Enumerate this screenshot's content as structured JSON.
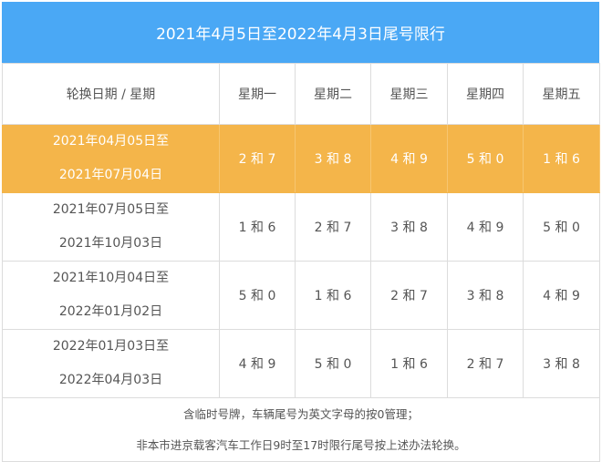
{
  "title": "2021年4月5日至2022年4月3日尾号限行",
  "header": [
    "轮换日期 / 星期",
    "星期一",
    "星期二",
    "星期三",
    "星期四",
    "星期五"
  ],
  "rows": [
    {
      "period": [
        "2021年04月05日至",
        "2021年07月04日"
      ],
      "values": [
        "2 和 7",
        "3 和 8",
        "4 和 9",
        "5 和 0",
        "1 和 6"
      ],
      "highlight": true
    },
    {
      "period": [
        "2021年07月05日至",
        "2021年10月03日"
      ],
      "values": [
        "1 和 6",
        "2 和 7",
        "3 和 8",
        "4 和 9",
        "5 和 0"
      ]
    },
    {
      "period": [
        "2021年10月04日至",
        "2022年01月02日"
      ],
      "values": [
        "5 和 0",
        "1 和 6",
        "2 和 7",
        "3 和 8",
        "4 和 9"
      ]
    },
    {
      "period": [
        "2022年01月03日至",
        "2022年04月03日"
      ],
      "values": [
        "4 和 9",
        "5 和 0",
        "1 和 6",
        "2 和 7",
        "3 和 8"
      ]
    }
  ],
  "notes": [
    "含临时号牌，车辆尾号为英文字母的按0管理；",
    "非本市进京载客汽车工作日9时至17时限行尾号按上述办法轮换。"
  ],
  "colors": {
    "title_bg": "#4aa8f5",
    "highlight_bg": "#f4b54a"
  }
}
